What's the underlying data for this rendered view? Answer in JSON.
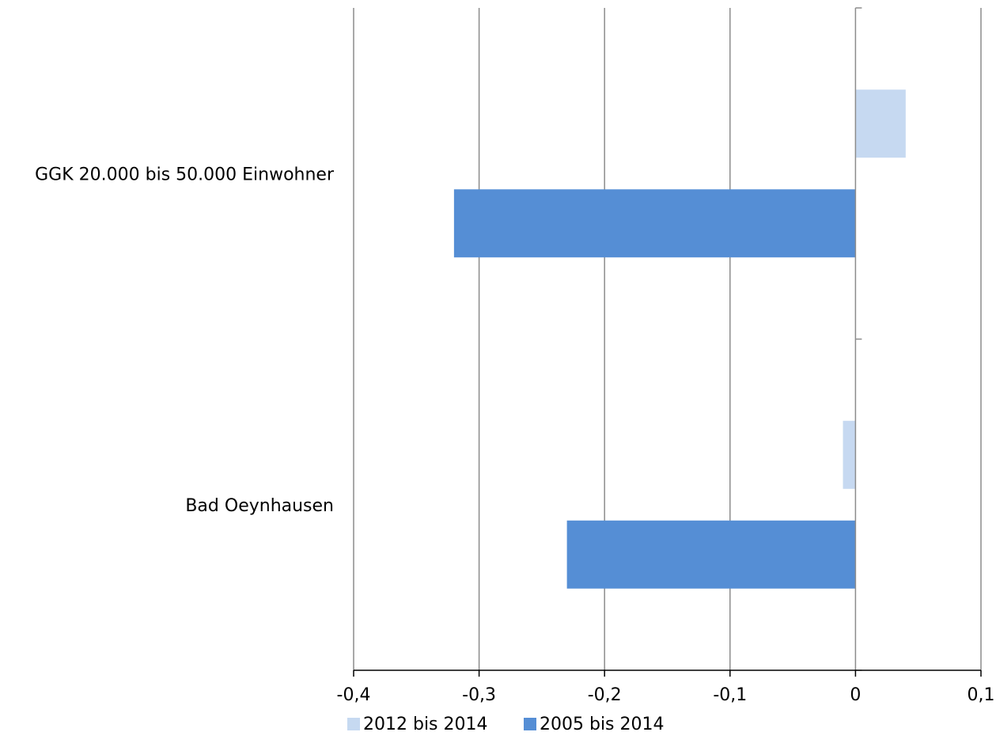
{
  "chart_data": {
    "type": "bar",
    "orientation": "horizontal",
    "categories": [
      "GGK 20.000 bis 50.000 Einwohner",
      "Bad Oeynhausen"
    ],
    "series": [
      {
        "name": "2012 bis 2014",
        "color": "#c6d9f1",
        "values": [
          0.04,
          -0.01
        ]
      },
      {
        "name": "2005 bis 2014",
        "color": "#558ed5",
        "values": [
          -0.32,
          -0.23
        ]
      }
    ],
    "x_ticks": [
      "-0,4",
      "-0,3",
      "-0,2",
      "-0,1",
      "0",
      "0,1"
    ],
    "x_tick_values": [
      -0.4,
      -0.3,
      -0.2,
      -0.1,
      0,
      0.1
    ],
    "xlim": [
      -0.4,
      0.1
    ],
    "title": "",
    "xlabel": "",
    "ylabel": "",
    "grid": true,
    "legend_position": "bottom"
  }
}
